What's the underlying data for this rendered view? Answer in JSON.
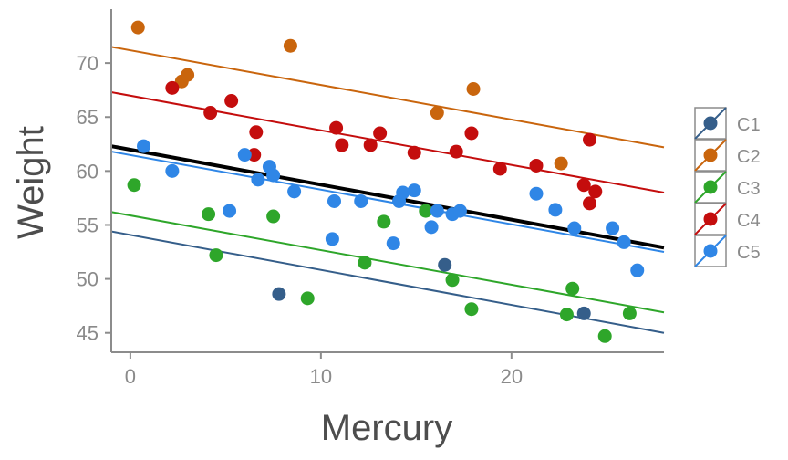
{
  "chart_data": {
    "type": "scatter",
    "xlabel": "Mercury",
    "ylabel": "Weight",
    "xlim": [
      -1,
      28
    ],
    "ylim": [
      43.2,
      75
    ],
    "xticks": [
      0,
      10,
      20
    ],
    "yticks": [
      45,
      50,
      55,
      60,
      65,
      70
    ],
    "grid": false,
    "legend_position": "right",
    "overall_fit": {
      "color": "#000000",
      "y_at_start": 62.3,
      "y_at_end": 52.9
    },
    "series": [
      {
        "name": "C1",
        "color": "#355E8A",
        "fit": {
          "y_at_start": 54.4,
          "y_at_end": 45.0
        },
        "points": [
          [
            7.8,
            48.6
          ],
          [
            16.5,
            51.3
          ],
          [
            23.8,
            46.8
          ]
        ]
      },
      {
        "name": "C2",
        "color": "#C9650D",
        "fit": {
          "y_at_start": 71.5,
          "y_at_end": 62.2
        },
        "points": [
          [
            0.4,
            73.3
          ],
          [
            2.7,
            68.3
          ],
          [
            3.0,
            68.9
          ],
          [
            8.4,
            71.6
          ],
          [
            16.1,
            65.4
          ],
          [
            18.0,
            67.6
          ],
          [
            22.6,
            60.7
          ]
        ]
      },
      {
        "name": "C3",
        "color": "#2EA62A",
        "fit": {
          "y_at_start": 56.2,
          "y_at_end": 46.9
        },
        "points": [
          [
            0.2,
            58.7
          ],
          [
            4.1,
            56.0
          ],
          [
            4.5,
            52.2
          ],
          [
            7.5,
            55.8
          ],
          [
            9.3,
            48.2
          ],
          [
            12.3,
            51.5
          ],
          [
            13.3,
            55.3
          ],
          [
            15.5,
            56.3
          ],
          [
            16.9,
            49.9
          ],
          [
            17.9,
            47.2
          ],
          [
            22.9,
            46.7
          ],
          [
            23.2,
            49.1
          ],
          [
            24.9,
            44.7
          ],
          [
            26.2,
            46.8
          ]
        ]
      },
      {
        "name": "C4",
        "color": "#C40D0D",
        "fit": {
          "y_at_start": 67.3,
          "y_at_end": 58.0
        },
        "points": [
          [
            2.2,
            67.7
          ],
          [
            4.2,
            65.4
          ],
          [
            5.3,
            66.5
          ],
          [
            6.5,
            61.5
          ],
          [
            6.6,
            63.6
          ],
          [
            10.8,
            64.0
          ],
          [
            11.1,
            62.4
          ],
          [
            12.6,
            62.4
          ],
          [
            13.1,
            63.5
          ],
          [
            14.9,
            61.7
          ],
          [
            17.1,
            61.8
          ],
          [
            17.9,
            63.5
          ],
          [
            19.4,
            60.2
          ],
          [
            21.3,
            60.5
          ],
          [
            23.8,
            58.7
          ],
          [
            24.1,
            62.9
          ],
          [
            24.1,
            57.0
          ],
          [
            24.4,
            58.1
          ]
        ]
      },
      {
        "name": "C5",
        "color": "#2F86E6",
        "fit": {
          "y_at_start": 61.8,
          "y_at_end": 52.5
        },
        "points": [
          [
            0.7,
            62.3
          ],
          [
            2.2,
            60.0
          ],
          [
            5.2,
            56.3
          ],
          [
            6.0,
            61.5
          ],
          [
            6.7,
            59.2
          ],
          [
            7.3,
            60.4
          ],
          [
            7.5,
            59.6
          ],
          [
            8.6,
            58.1
          ],
          [
            10.6,
            53.7
          ],
          [
            10.7,
            57.2
          ],
          [
            12.1,
            57.2
          ],
          [
            13.8,
            53.3
          ],
          [
            14.1,
            57.2
          ],
          [
            14.3,
            58.0
          ],
          [
            14.9,
            58.2
          ],
          [
            15.8,
            54.8
          ],
          [
            16.1,
            56.3
          ],
          [
            16.9,
            56.0
          ],
          [
            17.3,
            56.3
          ],
          [
            21.3,
            57.9
          ],
          [
            22.3,
            56.4
          ],
          [
            23.3,
            54.7
          ],
          [
            25.3,
            54.7
          ],
          [
            25.9,
            53.4
          ],
          [
            26.6,
            50.8
          ]
        ]
      }
    ]
  }
}
